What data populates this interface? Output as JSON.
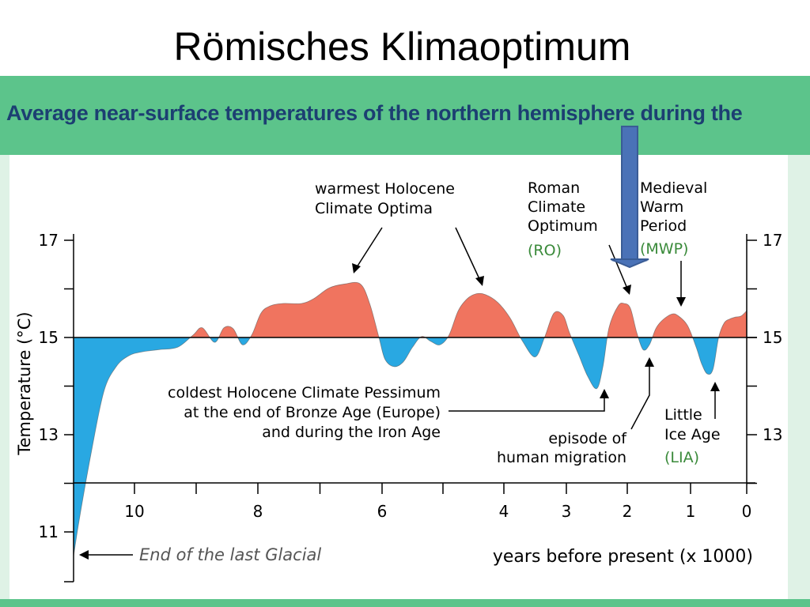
{
  "slide": {
    "title": "Römisches Klimaoptimum"
  },
  "figure": {
    "header": "Average near-surface temperatures of the northern hemisphere during the"
  },
  "colors": {
    "warm": "#f0745f",
    "cold": "#29a8e2",
    "band": "#5cc48b",
    "header_text": "#1c3f72",
    "arrow": "#4a72b7",
    "label_green": "#3a8a3a"
  },
  "chart_data": {
    "type": "area",
    "baseline": 15,
    "xlabel": "years before present (x 1000)",
    "ylabel": "Temperature (°C)",
    "x_reversed": true,
    "x_ticks": [
      "10",
      "8",
      "6",
      "4",
      "3",
      "2",
      "1",
      "0"
    ],
    "x_tick_values": [
      10,
      8,
      6,
      4,
      3,
      2,
      1,
      0
    ],
    "y_ticks_left": [
      "17",
      "15",
      "13",
      "11"
    ],
    "y_ticks_right": [
      "17",
      "15",
      "13"
    ],
    "y_tick_values": [
      17,
      15,
      13,
      11
    ],
    "series": [
      {
        "x": [
          11.0,
          10.9,
          10.7,
          10.5,
          10.3,
          10.1,
          9.9,
          9.6,
          9.3,
          9.05,
          8.9,
          8.7,
          8.55,
          8.4,
          8.25,
          8.1,
          7.95,
          7.8,
          7.6,
          7.3,
          7.1,
          6.85,
          6.6,
          6.35,
          6.2,
          6.05,
          5.95,
          5.8,
          5.65,
          5.5,
          5.35,
          5.2,
          5.05,
          4.9,
          4.75,
          4.6,
          4.45,
          4.3,
          4.1,
          3.9,
          3.7,
          3.5,
          3.35,
          3.2,
          3.05,
          2.95,
          2.8,
          2.65,
          2.5,
          2.4,
          2.3,
          2.15,
          2.05,
          1.95,
          1.85,
          1.75,
          1.65,
          1.55,
          1.45,
          1.3,
          1.2,
          1.05,
          0.9,
          0.8,
          0.7,
          0.6,
          0.5,
          0.4,
          0.3,
          0.2,
          0.1,
          0.0
        ],
        "y": [
          10.5,
          11.3,
          12.7,
          13.9,
          14.4,
          14.62,
          14.7,
          14.75,
          14.8,
          15.05,
          15.2,
          14.9,
          15.2,
          15.18,
          14.85,
          15.05,
          15.5,
          15.65,
          15.7,
          15.7,
          15.8,
          16.02,
          16.1,
          16.1,
          15.7,
          15.0,
          14.55,
          14.4,
          14.5,
          14.8,
          15.02,
          14.92,
          14.85,
          15.05,
          15.55,
          15.8,
          15.9,
          15.88,
          15.72,
          15.4,
          14.92,
          14.6,
          15.0,
          15.5,
          15.45,
          15.1,
          14.65,
          14.2,
          13.95,
          14.4,
          15.2,
          15.65,
          15.7,
          15.6,
          15.1,
          14.75,
          14.85,
          15.18,
          15.35,
          15.48,
          15.45,
          15.25,
          14.8,
          14.45,
          14.25,
          14.35,
          15.0,
          15.3,
          15.38,
          15.42,
          15.44,
          15.55
        ]
      }
    ],
    "annotations": [
      {
        "text": [
          "warmest Holocene",
          "Climate Optima"
        ]
      },
      {
        "text": [
          "Roman",
          "Climate",
          "Optimum"
        ],
        "abbr": "(RO)"
      },
      {
        "text": [
          "Medieval",
          "Warm",
          "Period"
        ],
        "abbr": "(MWP)"
      },
      {
        "text": [
          "coldest Holocene Climate Pessimum",
          "at the end of Bronze Age (Europe)",
          "and during the Iron Age"
        ]
      },
      {
        "text": [
          "episode of",
          "human migration"
        ]
      },
      {
        "text": [
          "Little",
          "Ice Age"
        ],
        "abbr": "(LIA)"
      },
      {
        "text": [
          "End of the last Glacial"
        ]
      }
    ]
  }
}
